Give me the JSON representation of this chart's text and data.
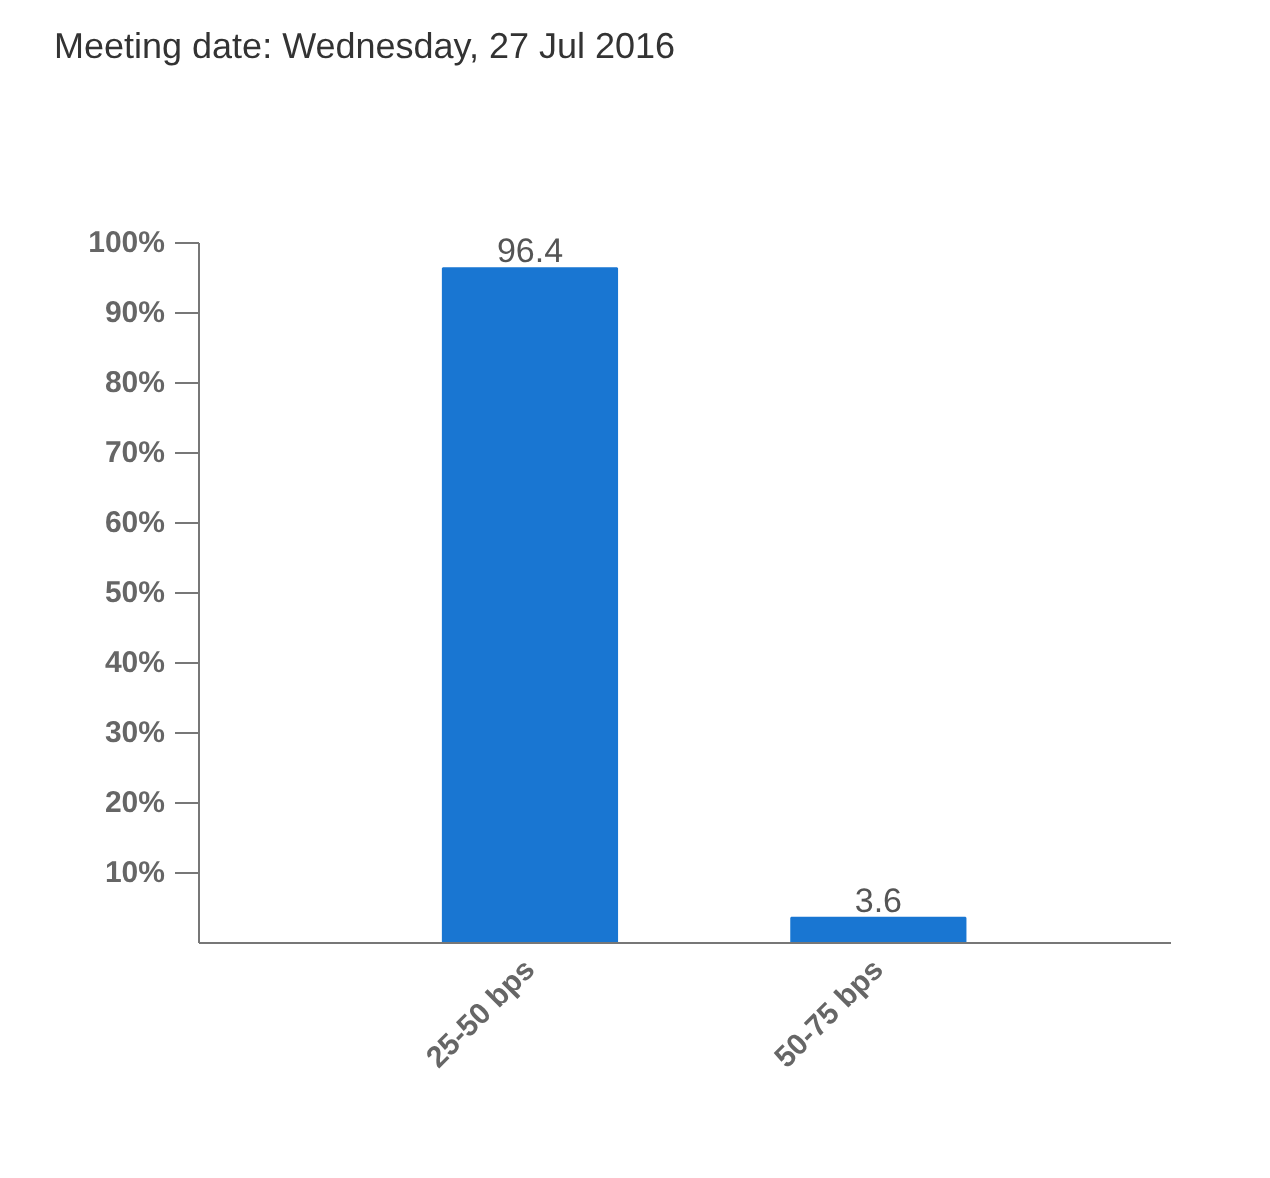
{
  "chart_data": {
    "type": "bar",
    "title": "Meeting date: Wednesday, 27 Jul 2016",
    "categories": [
      "25-50 bps",
      "50-75 bps"
    ],
    "values": [
      96.4,
      3.6
    ],
    "color": "#1976d2",
    "ylim": [
      0,
      100
    ],
    "yticks": [
      {
        "value": 10,
        "label": "10%"
      },
      {
        "value": 20,
        "label": "20%"
      },
      {
        "value": 30,
        "label": "30%"
      },
      {
        "value": 40,
        "label": "40%"
      },
      {
        "value": 50,
        "label": "50%"
      },
      {
        "value": 60,
        "label": "60%"
      },
      {
        "value": 70,
        "label": "70%"
      },
      {
        "value": 80,
        "label": "80%"
      },
      {
        "value": 90,
        "label": "90%"
      },
      {
        "value": 100,
        "label": "100%"
      }
    ],
    "data_labels": true,
    "grid": false
  }
}
